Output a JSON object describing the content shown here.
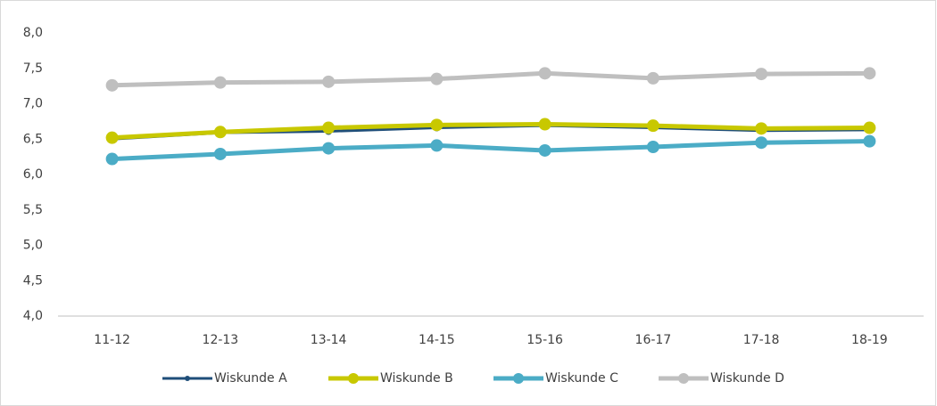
{
  "chart_data": {
    "type": "line",
    "categories": [
      "11-12",
      "12-13",
      "13-14",
      "14-15",
      "15-16",
      "16-17",
      "17-18",
      "18-19"
    ],
    "series": [
      {
        "name": "Wiskunde A",
        "color": "#1f4e79",
        "values": [
          6.5,
          6.59,
          6.61,
          6.66,
          6.69,
          6.66,
          6.62,
          6.63
        ]
      },
      {
        "name": "Wiskunde B",
        "color": "#c8c800",
        "values": [
          6.52,
          6.6,
          6.66,
          6.7,
          6.71,
          6.69,
          6.65,
          6.66
        ]
      },
      {
        "name": "Wiskunde C",
        "color": "#4bacc6",
        "values": [
          6.22,
          6.29,
          6.37,
          6.41,
          6.34,
          6.39,
          6.45,
          6.47
        ]
      },
      {
        "name": "Wiskunde D",
        "color": "#bfbfbf",
        "values": [
          7.26,
          7.3,
          7.31,
          7.35,
          7.43,
          7.36,
          7.42,
          7.43
        ]
      }
    ],
    "ylim": [
      4.0,
      8.0
    ],
    "yticks": [
      {
        "value": 4.0,
        "label": "4,0"
      },
      {
        "value": 4.5,
        "label": "4,5"
      },
      {
        "value": 5.0,
        "label": "5,0"
      },
      {
        "value": 5.5,
        "label": "5,5"
      },
      {
        "value": 6.0,
        "label": "6,0"
      },
      {
        "value": 6.5,
        "label": "6,5"
      },
      {
        "value": 7.0,
        "label": "7,0"
      },
      {
        "value": 7.5,
        "label": "7,5"
      },
      {
        "value": 8.0,
        "label": "8,0"
      }
    ],
    "grid": false,
    "legend": "bottom"
  }
}
